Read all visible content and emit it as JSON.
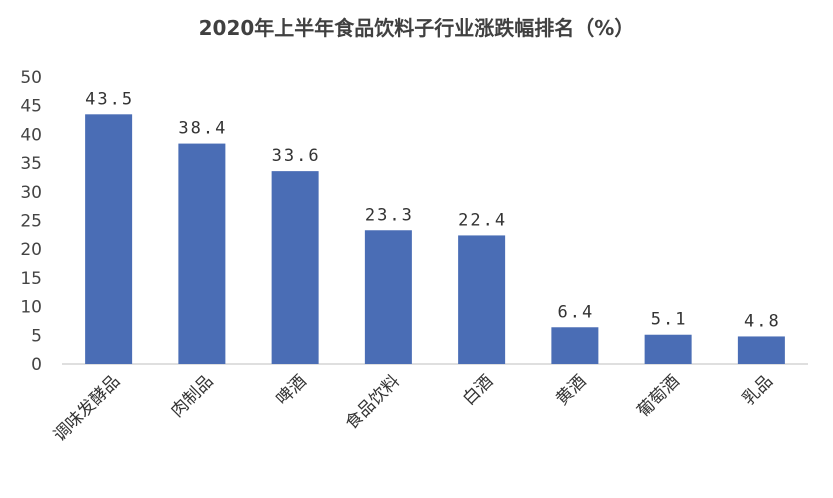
{
  "chart_data": {
    "type": "bar",
    "title": "2020年上半年食品饮料子行业涨跌幅排名（%）",
    "categories": [
      "调味发酵品",
      "肉制品",
      "啤酒",
      "食品饮料",
      "白酒",
      "黄酒",
      "葡萄酒",
      "乳品"
    ],
    "values": [
      43.5,
      38.4,
      33.6,
      23.3,
      22.4,
      6.4,
      5.1,
      4.8
    ],
    "value_labels": [
      "43.5",
      "38.4",
      "33.6",
      "23.3",
      "22.4",
      "6.4",
      "5.1",
      "4.8"
    ],
    "ylim": [
      0,
      50
    ],
    "yticks": [
      0,
      5,
      10,
      15,
      20,
      25,
      30,
      35,
      40,
      45,
      50
    ],
    "xlabel": "",
    "ylabel": "",
    "grid": false,
    "legend": "none",
    "bar_color": "#4a6db5"
  }
}
